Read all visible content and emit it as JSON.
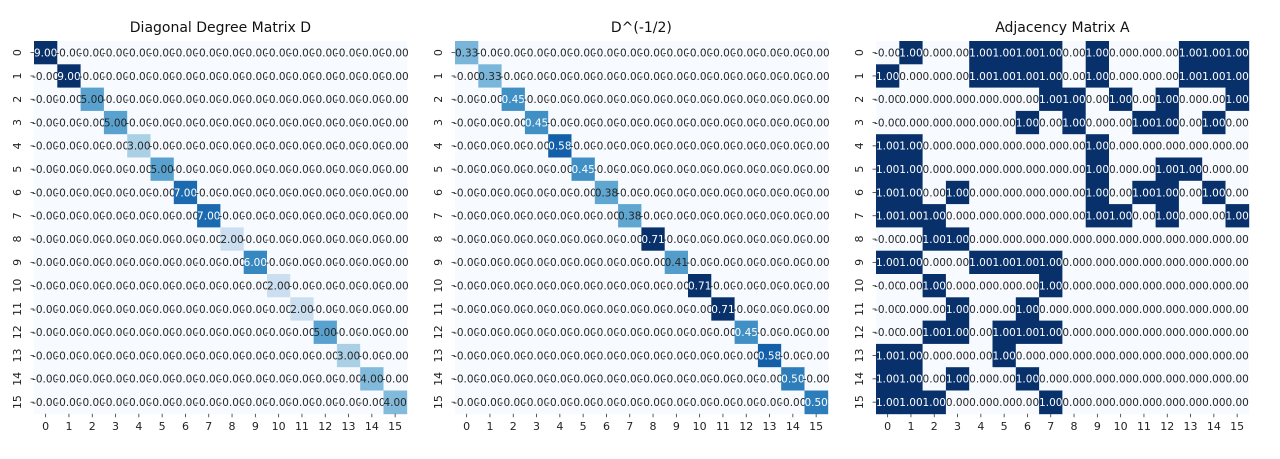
{
  "chart_data": [
    {
      "type": "heatmap",
      "title": "Diagonal Degree Matrix D",
      "x_ticks": [
        "0",
        "1",
        "2",
        "3",
        "4",
        "5",
        "6",
        "7",
        "8",
        "9",
        "10",
        "11",
        "12",
        "13",
        "14",
        "15"
      ],
      "y_ticks": [
        "0",
        "1",
        "2",
        "3",
        "4",
        "5",
        "6",
        "7",
        "8",
        "9",
        "10",
        "11",
        "12",
        "13",
        "14",
        "15"
      ],
      "value_format": 2,
      "colormap": "Blues",
      "diagonal": [
        9,
        9,
        5,
        5,
        3,
        5,
        7,
        7,
        2,
        6,
        2,
        2,
        5,
        3,
        4,
        4
      ],
      "off_diagonal_value": -0.0
    },
    {
      "type": "heatmap",
      "title": "D^(-1/2)",
      "x_ticks": [
        "0",
        "1",
        "2",
        "3",
        "4",
        "5",
        "6",
        "7",
        "8",
        "9",
        "10",
        "11",
        "12",
        "13",
        "14",
        "15"
      ],
      "y_ticks": [
        "0",
        "1",
        "2",
        "3",
        "4",
        "5",
        "6",
        "7",
        "8",
        "9",
        "10",
        "11",
        "12",
        "13",
        "14",
        "15"
      ],
      "value_format": 2,
      "colormap": "Blues",
      "diagonal": [
        0.33,
        0.33,
        0.45,
        0.45,
        0.58,
        0.45,
        0.38,
        0.38,
        0.71,
        0.41,
        0.71,
        0.71,
        0.45,
        0.58,
        0.5,
        0.5
      ],
      "off_diagonal_value": -0.0
    },
    {
      "type": "heatmap",
      "title": "Adjacency Matrix A",
      "x_ticks": [
        "0",
        "1",
        "2",
        "3",
        "4",
        "5",
        "6",
        "7",
        "8",
        "9",
        "10",
        "11",
        "12",
        "13",
        "14",
        "15"
      ],
      "y_ticks": [
        "0",
        "1",
        "2",
        "3",
        "4",
        "5",
        "6",
        "7",
        "8",
        "9",
        "10",
        "11",
        "12",
        "13",
        "14",
        "15"
      ],
      "value_format": 2,
      "colormap": "Blues",
      "matrix": [
        [
          -0.0,
          1,
          0,
          0,
          1,
          1,
          1,
          1,
          0,
          1,
          0,
          0,
          0,
          1,
          1,
          1
        ],
        [
          1,
          0,
          0,
          0,
          1,
          1,
          1,
          1,
          0,
          1,
          0,
          0,
          0,
          1,
          1,
          1
        ],
        [
          -0.0,
          0,
          0,
          0,
          0,
          0,
          0,
          1,
          1,
          0,
          1,
          0,
          1,
          0,
          0,
          1
        ],
        [
          -0.0,
          0,
          0,
          0,
          0,
          0,
          1,
          0,
          1,
          0,
          0,
          1,
          1,
          0,
          1,
          0
        ],
        [
          1,
          1,
          0,
          0,
          0,
          0,
          0,
          0,
          0,
          1,
          0,
          0,
          0,
          0,
          0,
          0
        ],
        [
          1,
          1,
          0,
          0,
          0,
          0,
          0,
          0,
          0,
          1,
          0,
          0,
          1,
          1,
          0,
          0
        ],
        [
          1,
          1,
          0,
          1,
          0,
          0,
          0,
          0,
          0,
          1,
          0,
          1,
          1,
          0,
          1,
          0
        ],
        [
          1,
          1,
          1,
          0,
          0,
          0,
          0,
          0,
          0,
          1,
          1,
          0,
          1,
          0,
          0,
          1
        ],
        [
          -0.0,
          0,
          1,
          1,
          0,
          0,
          0,
          0,
          0,
          0,
          0,
          0,
          0,
          0,
          0,
          0
        ],
        [
          1,
          1,
          0,
          0,
          1,
          1,
          1,
          1,
          0,
          0,
          0,
          0,
          0,
          0,
          0,
          0
        ],
        [
          -0.0,
          0,
          1,
          0,
          0,
          0,
          0,
          1,
          0,
          0,
          0,
          0,
          0,
          0,
          0,
          0
        ],
        [
          -0.0,
          0,
          0,
          1,
          0,
          0,
          1,
          0,
          0,
          0,
          0,
          0,
          0,
          0,
          0,
          0
        ],
        [
          -0.0,
          0,
          1,
          1,
          0,
          1,
          1,
          1,
          0,
          0,
          0,
          0,
          0,
          0,
          0,
          0
        ],
        [
          1,
          1,
          0,
          0,
          0,
          1,
          0,
          0,
          0,
          0,
          0,
          0,
          0,
          0,
          0,
          0
        ],
        [
          1,
          1,
          0,
          1,
          0,
          0,
          1,
          0,
          0,
          0,
          0,
          0,
          0,
          0,
          0,
          0
        ],
        [
          1,
          1,
          1,
          0,
          0,
          0,
          0,
          1,
          0,
          0,
          0,
          0,
          0,
          0,
          0,
          0
        ]
      ]
    }
  ]
}
